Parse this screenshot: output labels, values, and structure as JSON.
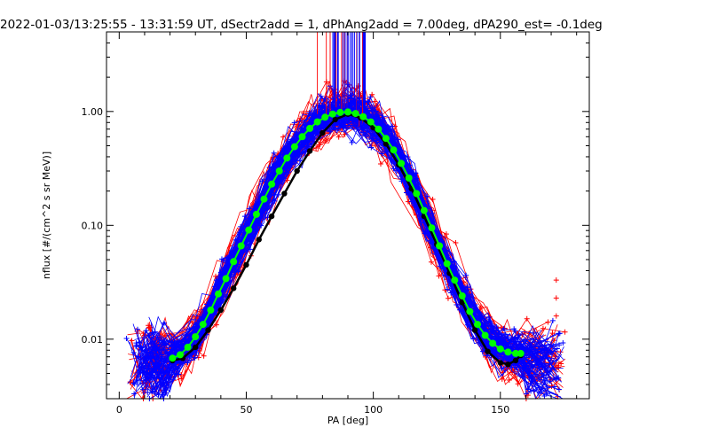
{
  "chart_data": {
    "type": "line",
    "title": "2022-01-03/13:25:55 - 13:31:59 UT, dSectr2add = 1, dPhAng2add = 7.00deg, dPA290_est=  -0.1deg",
    "xlabel": "PA [deg]",
    "ylabel": "nflux [#/(cm^2 s sr MeV)]",
    "xlim": [
      -5,
      185
    ],
    "ylim": [
      0.003,
      5.0
    ],
    "yscale": "log",
    "x_ticks": [
      "0",
      "50",
      "100",
      "150"
    ],
    "x_tick_values": [
      0,
      50,
      100,
      150
    ],
    "y_ticks": [
      "0.01",
      "0.10",
      "1.00"
    ],
    "y_tick_values": [
      0.01,
      0.1,
      1.0
    ],
    "colors": {
      "red_traces": "#ff0000",
      "blue_traces": "#0000ff",
      "mean_curve": "#000000",
      "fit_curve": "#00ff00"
    },
    "series": [
      {
        "color": "#00ff00",
        "marker": "filled-circle",
        "x": [
          21,
          24,
          27,
          30,
          33,
          36,
          39,
          42,
          45,
          48,
          51,
          54,
          57,
          60,
          63,
          66,
          69,
          72,
          75,
          78,
          81,
          84,
          87,
          90,
          93,
          96,
          99,
          102,
          105,
          108,
          111,
          114,
          117,
          120,
          123,
          126,
          129,
          132,
          135,
          138,
          141,
          144,
          147,
          150,
          153,
          156,
          158
        ],
        "y": [
          0.0068,
          0.0073,
          0.0085,
          0.0105,
          0.0135,
          0.018,
          0.025,
          0.034,
          0.048,
          0.066,
          0.091,
          0.125,
          0.17,
          0.23,
          0.3,
          0.39,
          0.49,
          0.6,
          0.71,
          0.81,
          0.89,
          0.95,
          0.98,
          0.99,
          0.96,
          0.9,
          0.81,
          0.7,
          0.58,
          0.46,
          0.35,
          0.26,
          0.19,
          0.135,
          0.095,
          0.066,
          0.046,
          0.033,
          0.024,
          0.0175,
          0.0135,
          0.0108,
          0.0092,
          0.0082,
          0.0077,
          0.0075,
          0.0075
        ]
      },
      {
        "color": "#000000",
        "marker": "filled-circle",
        "x": [
          21,
          25,
          30,
          35,
          40,
          45,
          50,
          55,
          60,
          65,
          70,
          75,
          80,
          85,
          90,
          95,
          100,
          105,
          110,
          115,
          120,
          125,
          130,
          135,
          140,
          145,
          150,
          153,
          156,
          158
        ],
        "y": [
          0.0065,
          0.0068,
          0.0085,
          0.012,
          0.018,
          0.028,
          0.045,
          0.075,
          0.12,
          0.19,
          0.3,
          0.45,
          0.65,
          0.85,
          0.95,
          0.88,
          0.72,
          0.52,
          0.34,
          0.21,
          0.12,
          0.068,
          0.038,
          0.021,
          0.012,
          0.0078,
          0.0062,
          0.006,
          0.0065,
          0.0072
        ]
      }
    ]
  }
}
